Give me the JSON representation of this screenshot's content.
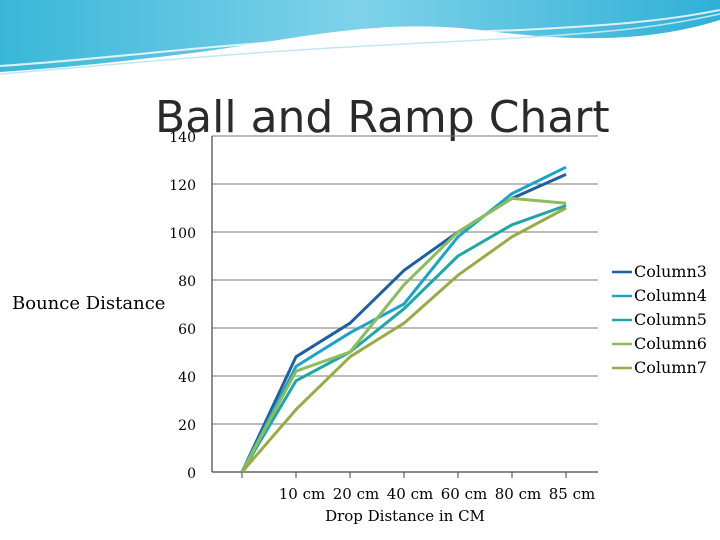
{
  "slide": {
    "title": "Ball and Ramp Chart"
  },
  "chart_data": {
    "type": "line",
    "title": "",
    "xlabel": "Drop Distance in CM",
    "ylabel": "Bounce Distance",
    "categories": [
      "",
      "10 cm",
      "20 cm",
      "40 cm",
      "60 cm",
      "80 cm",
      "85 cm"
    ],
    "ylim": [
      0,
      140
    ],
    "y_ticks": [
      0,
      20,
      40,
      60,
      80,
      100,
      120,
      140
    ],
    "grid": true,
    "legend_position": "right",
    "series": [
      {
        "name": "Column3",
        "color": "#1f5fa0",
        "values": [
          0,
          48,
          62,
          84,
          100,
          114,
          124
        ]
      },
      {
        "name": "Column4",
        "color": "#1ea3c6",
        "values": [
          0,
          44,
          58,
          70,
          98,
          116,
          127
        ]
      },
      {
        "name": "Column5",
        "color": "#20a6a6",
        "values": [
          0,
          38,
          50,
          68,
          90,
          103,
          111
        ]
      },
      {
        "name": "Column6",
        "color": "#8cbc5e",
        "values": [
          0,
          42,
          50,
          78,
          100,
          114,
          112
        ]
      },
      {
        "name": "Column7",
        "color": "#9aaa48",
        "values": [
          0,
          26,
          48,
          62,
          82,
          98,
          110
        ]
      }
    ]
  }
}
